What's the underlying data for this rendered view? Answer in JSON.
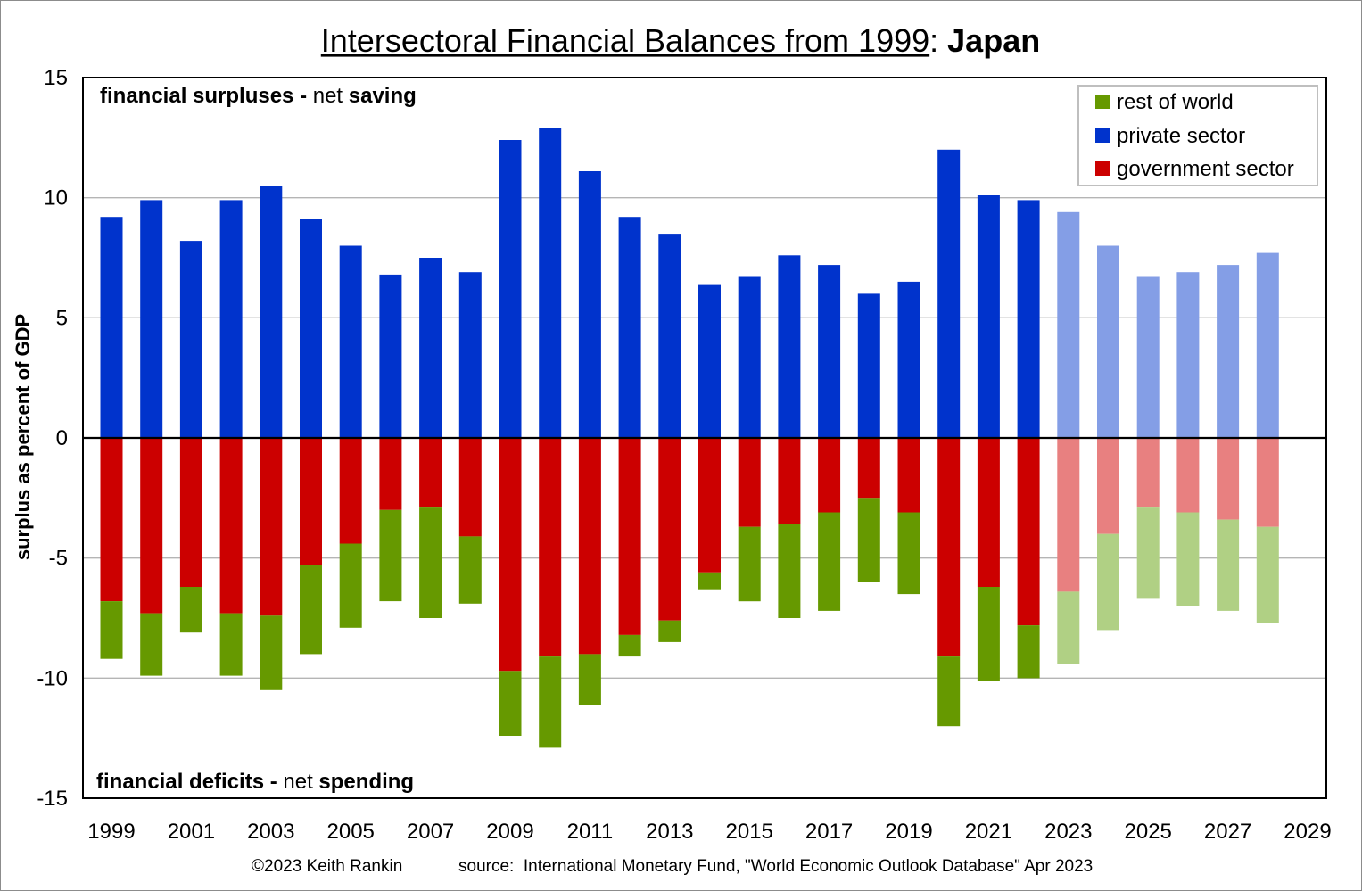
{
  "chart_data": {
    "type": "bar",
    "stacked": true,
    "title": "Intersectoral Financial Balances from 1999",
    "title_separator": ": ",
    "title_country": "Japan",
    "ylabel": "surplus as percent of GDP",
    "ylim": [
      -15,
      15
    ],
    "yticks": [
      15,
      10,
      5,
      0,
      -5,
      -10,
      -15
    ],
    "xlim": [
      1999,
      2029
    ],
    "xticks": [
      "1999",
      "2001",
      "2003",
      "2005",
      "2007",
      "2009",
      "2011",
      "2013",
      "2015",
      "2017",
      "2019",
      "2021",
      "2023",
      "2025",
      "2027",
      "2029"
    ],
    "grid": true,
    "legend_position": "top-right",
    "annotations": {
      "top": {
        "bold1": "financial surpluses",
        "mid": " - ",
        "plain": "net ",
        "bold2": "saving"
      },
      "bottom": {
        "bold1": "financial deficits",
        "mid": " - ",
        "plain": "net ",
        "bold2": "spending"
      }
    },
    "forecast_from": 2023,
    "years": [
      1999,
      2000,
      2001,
      2002,
      2003,
      2004,
      2005,
      2006,
      2007,
      2008,
      2009,
      2010,
      2011,
      2012,
      2013,
      2014,
      2015,
      2016,
      2017,
      2018,
      2019,
      2020,
      2021,
      2022,
      2023,
      2024,
      2025,
      2026,
      2027,
      2028
    ],
    "series": [
      {
        "name": "rest of world",
        "color": "#669900",
        "forecast_color": "#b0d084",
        "values": [
          -2.4,
          -2.6,
          -1.9,
          -2.6,
          -3.1,
          -3.7,
          -3.5,
          -3.8,
          -4.6,
          -2.8,
          -2.7,
          -3.8,
          -2.1,
          -0.9,
          -0.9,
          -0.7,
          -3.1,
          -3.9,
          -4.1,
          -3.5,
          -3.4,
          -2.9,
          -3.9,
          -2.2,
          -3.0,
          -4.0,
          -3.8,
          -3.9,
          -3.8,
          -4.0
        ]
      },
      {
        "name": "private sector",
        "color": "#0033cc",
        "forecast_color": "#849ee6",
        "values": [
          9.2,
          9.9,
          8.2,
          9.9,
          10.5,
          9.1,
          8.0,
          6.8,
          7.5,
          6.9,
          12.4,
          12.9,
          11.1,
          9.2,
          8.5,
          6.4,
          6.7,
          7.6,
          7.2,
          6.0,
          6.5,
          12.0,
          10.1,
          9.9,
          9.4,
          8.0,
          6.7,
          6.9,
          7.2,
          7.7
        ]
      },
      {
        "name": "government sector",
        "color": "#cc0000",
        "forecast_color": "#e88080",
        "values": [
          -6.8,
          -7.3,
          -6.2,
          -7.3,
          -7.4,
          -5.3,
          -4.4,
          -3.0,
          -2.9,
          -4.1,
          -9.7,
          -9.1,
          -9.0,
          -8.2,
          -7.6,
          -5.6,
          -3.7,
          -3.6,
          -3.1,
          -2.5,
          -3.1,
          -9.1,
          -6.2,
          -7.8,
          -6.4,
          -4.0,
          -2.9,
          -3.1,
          -3.4,
          -3.7
        ]
      }
    ]
  },
  "footer": {
    "copyright": "©2023 Keith Rankin",
    "source": "source:  International Monetary Fund, \"World Economic Outlook Database\" Apr 2023"
  }
}
